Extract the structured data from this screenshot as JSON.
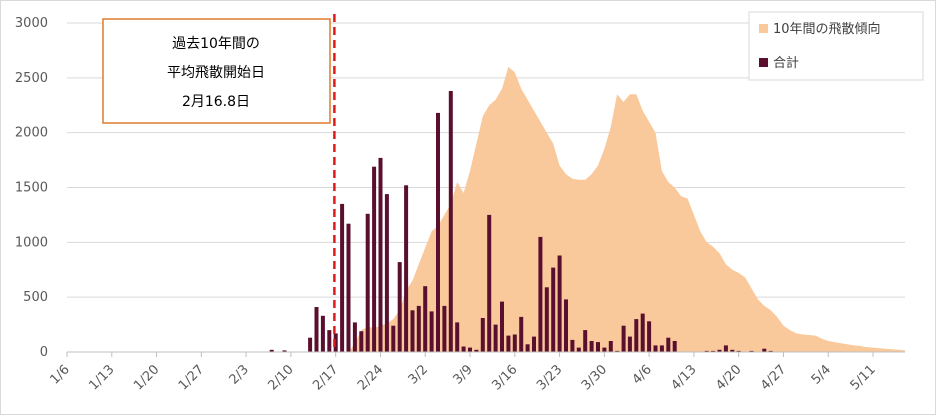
{
  "chart_data": {
    "type": "bar",
    "ylim": [
      0,
      3000
    ],
    "yticks": [
      0,
      500,
      1000,
      1500,
      2000,
      2500,
      3000
    ],
    "x_start": "1/6",
    "x_end": "5/16",
    "xtick_labels": [
      "1/6",
      "1/13",
      "1/20",
      "1/27",
      "2/3",
      "2/10",
      "2/17",
      "2/24",
      "3/2",
      "3/9",
      "3/16",
      "3/23",
      "3/30",
      "4/6",
      "4/13",
      "4/20",
      "4/27",
      "5/4",
      "5/11"
    ],
    "legend": {
      "placement": "top-right",
      "items": [
        {
          "label": "10年間の飛散傾向",
          "color": "#f9c89b"
        },
        {
          "label": "合計",
          "color": "#5a0f2e"
        }
      ]
    },
    "annotation": {
      "lines": [
        "過去10年間の",
        "平均飛散開始日",
        "2月16.8日"
      ],
      "marker_date": "2/17",
      "border_color": "#e07b2a",
      "line_color": "#e01b1b"
    },
    "series": [
      {
        "name": "10年間の飛散傾向",
        "kind": "area",
        "color": "#f9c89b",
        "points": [
          [
            "2/19",
            0
          ],
          [
            "2/20",
            80
          ],
          [
            "2/21",
            200
          ],
          [
            "2/22",
            230
          ],
          [
            "2/23",
            220
          ],
          [
            "2/24",
            240
          ],
          [
            "2/25",
            260
          ],
          [
            "2/26",
            300
          ],
          [
            "2/27",
            380
          ],
          [
            "2/28",
            560
          ],
          [
            "2/29",
            650
          ],
          [
            "3/1",
            800
          ],
          [
            "3/2",
            950
          ],
          [
            "3/3",
            1100
          ],
          [
            "3/4",
            1150
          ],
          [
            "3/5",
            1250
          ],
          [
            "3/6",
            1350
          ],
          [
            "3/7",
            1550
          ],
          [
            "3/8",
            1450
          ],
          [
            "3/9",
            1650
          ],
          [
            "3/10",
            1900
          ],
          [
            "3/11",
            2150
          ],
          [
            "3/12",
            2250
          ],
          [
            "3/13",
            2300
          ],
          [
            "3/14",
            2400
          ],
          [
            "3/15",
            2600
          ],
          [
            "3/16",
            2550
          ],
          [
            "3/17",
            2400
          ],
          [
            "3/18",
            2300
          ],
          [
            "3/19",
            2200
          ],
          [
            "3/20",
            2100
          ],
          [
            "3/21",
            2000
          ],
          [
            "3/22",
            1900
          ],
          [
            "3/23",
            1700
          ],
          [
            "3/24",
            1620
          ],
          [
            "3/25",
            1580
          ],
          [
            "3/26",
            1570
          ],
          [
            "3/27",
            1570
          ],
          [
            "3/28",
            1620
          ],
          [
            "3/29",
            1700
          ],
          [
            "3/30",
            1850
          ],
          [
            "3/31",
            2050
          ],
          [
            "4/1",
            2350
          ],
          [
            "4/2",
            2280
          ],
          [
            "4/3",
            2350
          ],
          [
            "4/4",
            2350
          ],
          [
            "4/5",
            2200
          ],
          [
            "4/6",
            2100
          ],
          [
            "4/7",
            2000
          ],
          [
            "4/8",
            1650
          ],
          [
            "4/9",
            1550
          ],
          [
            "4/10",
            1500
          ],
          [
            "4/11",
            1420
          ],
          [
            "4/12",
            1400
          ],
          [
            "4/13",
            1250
          ],
          [
            "4/14",
            1100
          ],
          [
            "4/15",
            1000
          ],
          [
            "4/16",
            960
          ],
          [
            "4/17",
            900
          ],
          [
            "4/18",
            800
          ],
          [
            "4/19",
            750
          ],
          [
            "4/20",
            720
          ],
          [
            "4/21",
            680
          ],
          [
            "4/22",
            580
          ],
          [
            "4/23",
            480
          ],
          [
            "4/24",
            420
          ],
          [
            "4/25",
            380
          ],
          [
            "4/26",
            320
          ],
          [
            "4/27",
            240
          ],
          [
            "4/28",
            200
          ],
          [
            "4/29",
            170
          ],
          [
            "4/30",
            160
          ],
          [
            "5/1",
            155
          ],
          [
            "5/2",
            150
          ],
          [
            "5/3",
            120
          ],
          [
            "5/4",
            100
          ],
          [
            "5/5",
            90
          ],
          [
            "5/6",
            80
          ],
          [
            "5/7",
            70
          ],
          [
            "5/8",
            60
          ],
          [
            "5/9",
            55
          ],
          [
            "5/10",
            45
          ],
          [
            "5/11",
            40
          ],
          [
            "5/12",
            35
          ],
          [
            "5/13",
            30
          ],
          [
            "5/14",
            25
          ],
          [
            "5/15",
            20
          ],
          [
            "5/16",
            15
          ]
        ]
      },
      {
        "name": "合計",
        "kind": "bar",
        "color": "#5a0f2e",
        "points": [
          [
            "2/7",
            20
          ],
          [
            "2/9",
            15
          ],
          [
            "2/11",
            5
          ],
          [
            "2/13",
            130
          ],
          [
            "2/14",
            410
          ],
          [
            "2/15",
            330
          ],
          [
            "2/16",
            200
          ],
          [
            "2/17",
            170
          ],
          [
            "2/18",
            1350
          ],
          [
            "2/19",
            1170
          ],
          [
            "2/20",
            270
          ],
          [
            "2/21",
            190
          ],
          [
            "2/22",
            1260
          ],
          [
            "2/23",
            1690
          ],
          [
            "2/24",
            1770
          ],
          [
            "2/25",
            1440
          ],
          [
            "2/26",
            240
          ],
          [
            "2/27",
            820
          ],
          [
            "2/28",
            1520
          ],
          [
            "2/29",
            380
          ],
          [
            "3/1",
            420
          ],
          [
            "3/2",
            600
          ],
          [
            "3/3",
            370
          ],
          [
            "3/4",
            2180
          ],
          [
            "3/5",
            420
          ],
          [
            "3/6",
            2380
          ],
          [
            "3/7",
            270
          ],
          [
            "3/8",
            50
          ],
          [
            "3/9",
            40
          ],
          [
            "3/10",
            20
          ],
          [
            "3/11",
            310
          ],
          [
            "3/12",
            1250
          ],
          [
            "3/13",
            250
          ],
          [
            "3/14",
            460
          ],
          [
            "3/15",
            150
          ],
          [
            "3/16",
            160
          ],
          [
            "3/17",
            320
          ],
          [
            "3/18",
            70
          ],
          [
            "3/19",
            140
          ],
          [
            "3/20",
            1050
          ],
          [
            "3/21",
            590
          ],
          [
            "3/22",
            770
          ],
          [
            "3/23",
            880
          ],
          [
            "3/24",
            480
          ],
          [
            "3/25",
            110
          ],
          [
            "3/26",
            40
          ],
          [
            "3/27",
            200
          ],
          [
            "3/28",
            100
          ],
          [
            "3/29",
            90
          ],
          [
            "3/30",
            40
          ],
          [
            "3/31",
            100
          ],
          [
            "4/1",
            10
          ],
          [
            "4/2",
            240
          ],
          [
            "4/3",
            140
          ],
          [
            "4/4",
            300
          ],
          [
            "4/5",
            350
          ],
          [
            "4/6",
            280
          ],
          [
            "4/7",
            60
          ],
          [
            "4/8",
            60
          ],
          [
            "4/9",
            130
          ],
          [
            "4/10",
            100
          ],
          [
            "4/15",
            10
          ],
          [
            "4/16",
            10
          ],
          [
            "4/17",
            20
          ],
          [
            "4/18",
            60
          ],
          [
            "4/19",
            20
          ],
          [
            "4/20",
            10
          ],
          [
            "4/22",
            10
          ],
          [
            "4/24",
            30
          ],
          [
            "4/25",
            10
          ]
        ]
      }
    ]
  }
}
